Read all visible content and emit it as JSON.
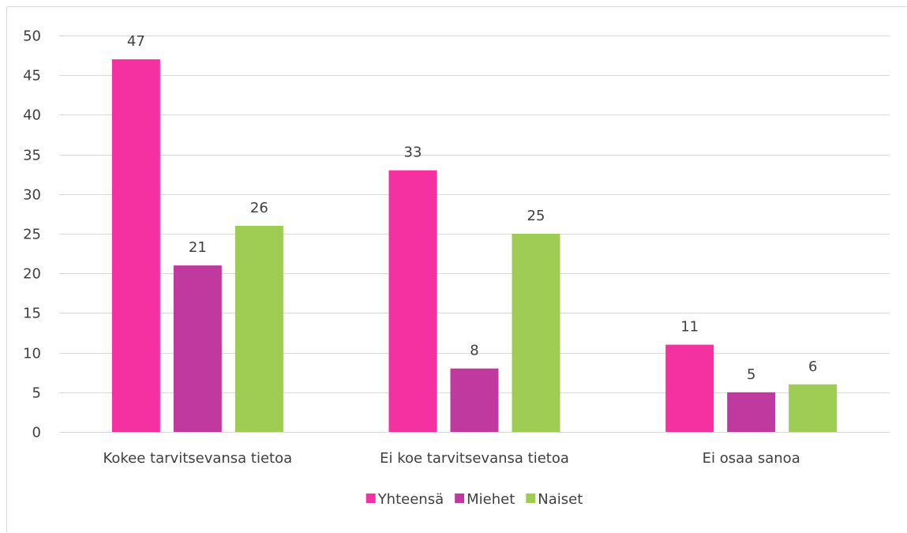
{
  "chart_data": {
    "type": "bar",
    "title": "",
    "xlabel": "",
    "ylabel": "",
    "categories": [
      "Kokee tarvitsevansa tietoa",
      "Ei koe tarvitsevansa tietoa",
      "Ei osaa sanoa"
    ],
    "series": [
      {
        "name": "Yhteensä",
        "values": [
          47,
          33,
          11
        ],
        "color": "#f530a0"
      },
      {
        "name": "Miehet",
        "values": [
          21,
          8,
          5
        ],
        "color": "#c0399e"
      },
      {
        "name": "Naiset",
        "values": [
          26,
          25,
          6
        ],
        "color": "#9fcc52"
      }
    ],
    "ylim": [
      0,
      50
    ],
    "yticks": [
      0,
      5,
      10,
      15,
      20,
      25,
      30,
      35,
      40,
      45,
      50
    ],
    "grid": true,
    "legend_position": "bottom-center",
    "data_labels": true
  }
}
